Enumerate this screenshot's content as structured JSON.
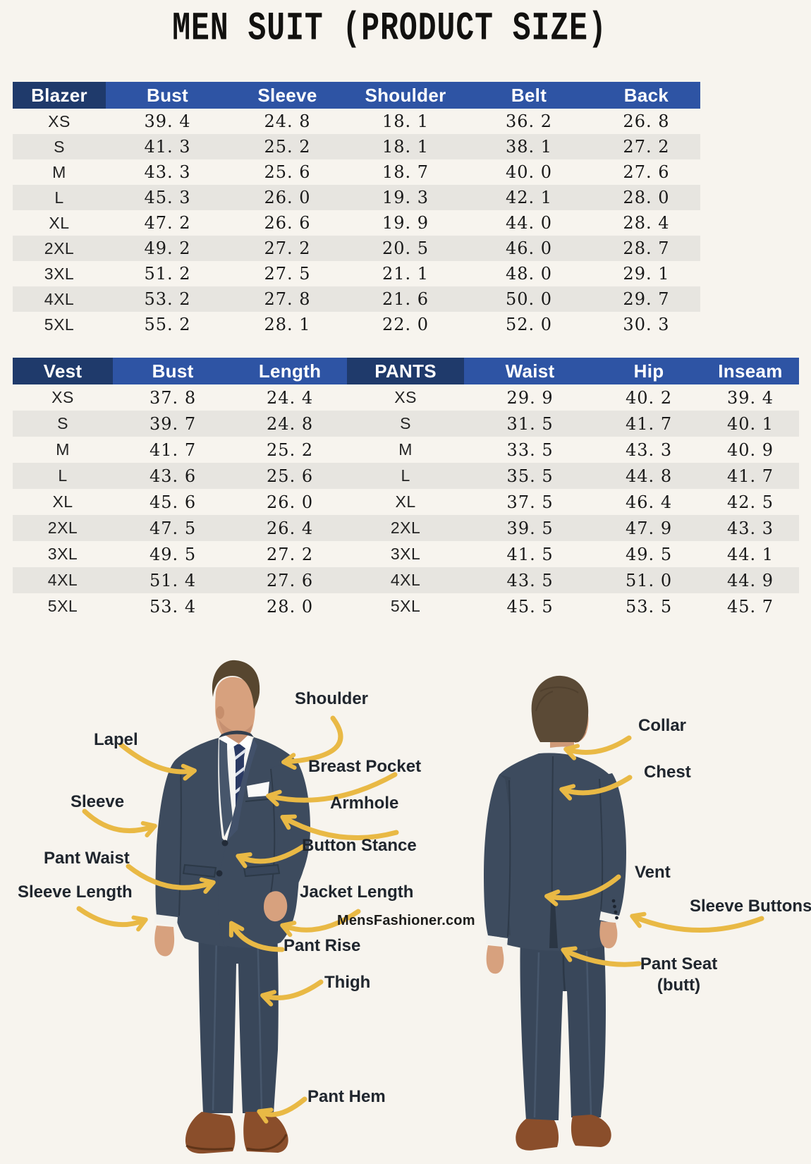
{
  "title": "MEN SUIT (PRODUCT SIZE)",
  "colors": {
    "page_bg": "#f7f4ee",
    "header_blue": "#2e54a4",
    "header_dark_navy": "#1f3a6b",
    "row_stripe": "#e7e5e0",
    "arrow_yellow": "#e9b945",
    "label_text": "#20262e",
    "suit_navy": "#3d4b5e",
    "shoe_brown": "#8a4e2b"
  },
  "blazer_table": {
    "columns": [
      "Blazer",
      "Bust",
      "Sleeve",
      "Shoulder",
      "Belt",
      "Back"
    ],
    "rows": [
      [
        "XS",
        "39. 4",
        "24. 8",
        "18. 1",
        "36. 2",
        "26. 8"
      ],
      [
        "S",
        "41. 3",
        "25. 2",
        "18. 1",
        "38. 1",
        "27. 2"
      ],
      [
        "M",
        "43. 3",
        "25. 6",
        "18. 7",
        "40. 0",
        "27. 6"
      ],
      [
        "L",
        "45. 3",
        "26. 0",
        "19. 3",
        "42. 1",
        "28. 0"
      ],
      [
        "XL",
        "47. 2",
        "26. 6",
        "19. 9",
        "44. 0",
        "28. 4"
      ],
      [
        "2XL",
        "49. 2",
        "27. 2",
        "20. 5",
        "46. 0",
        "28. 7"
      ],
      [
        "3XL",
        "51. 2",
        "27. 5",
        "21. 1",
        "48. 0",
        "29. 1"
      ],
      [
        "4XL",
        "53. 2",
        "27. 8",
        "21. 6",
        "50. 0",
        "29. 7"
      ],
      [
        "5XL",
        "55. 2",
        "28. 1",
        "22. 0",
        "52. 0",
        "30. 3"
      ]
    ]
  },
  "vest_pants_table": {
    "columns": [
      "Vest",
      "Bust",
      "Length",
      "PANTS",
      "Waist",
      "Hip",
      "Inseam"
    ],
    "rows": [
      [
        "XS",
        "37. 8",
        "24. 4",
        "XS",
        "29. 9",
        "40. 2",
        "39. 4"
      ],
      [
        "S",
        "39. 7",
        "24. 8",
        "S",
        "31. 5",
        "41. 7",
        "40. 1"
      ],
      [
        "M",
        "41. 7",
        "25. 2",
        "M",
        "33. 5",
        "43. 3",
        "40. 9"
      ],
      [
        "L",
        "43. 6",
        "25. 6",
        "L",
        "35. 5",
        "44. 8",
        "41. 7"
      ],
      [
        "XL",
        "45. 6",
        "26. 0",
        "XL",
        "37. 5",
        "46. 4",
        "42. 5"
      ],
      [
        "2XL",
        "47. 5",
        "26. 4",
        "2XL",
        "39. 5",
        "47. 9",
        "43. 3"
      ],
      [
        "3XL",
        "49. 5",
        "27. 2",
        "3XL",
        "41. 5",
        "49. 5",
        "44. 1"
      ],
      [
        "4XL",
        "51. 4",
        "27. 6",
        "4XL",
        "43. 5",
        "51. 0",
        "44. 9"
      ],
      [
        "5XL",
        "53. 4",
        "28. 0",
        "5XL",
        "45. 5",
        "53. 5",
        "45. 7"
      ]
    ]
  },
  "diagram": {
    "watermark": "MensFashioner.com",
    "labels": {
      "shoulder": "Shoulder",
      "lapel": "Lapel",
      "breast_pocket": "Breast Pocket",
      "sleeve": "Sleeve",
      "armhole": "Armhole",
      "button_stance": "Button Stance",
      "pant_waist": "Pant Waist",
      "sleeve_length": "Sleeve Length",
      "jacket_length": "Jacket Length",
      "pant_rise": "Pant Rise",
      "thigh": "Thigh",
      "pant_hem": "Pant Hem",
      "collar": "Collar",
      "chest": "Chest",
      "vent": "Vent",
      "sleeve_buttons": "Sleeve Buttons",
      "pant_seat": "Pant Seat",
      "pant_seat_sub": "(butt)"
    }
  }
}
